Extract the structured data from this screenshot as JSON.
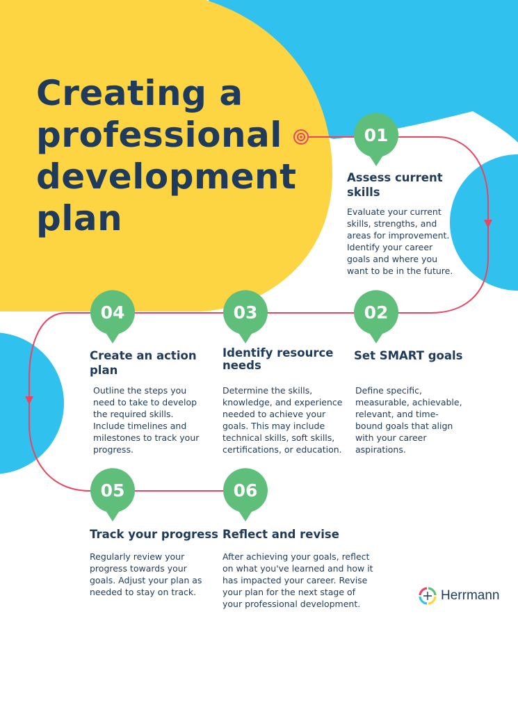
{
  "title_lines": [
    "Creating a",
    "professional",
    "development",
    "plan"
  ],
  "colors": {
    "yellow": "#FDD441",
    "blue": "#31C1EF",
    "green": "#5EBE7A",
    "line": "#E94562",
    "navy": "#1F3A5A"
  },
  "steps": [
    {
      "number": "01",
      "title_lines": [
        "Assess current",
        "skills"
      ],
      "desc_lines": [
        "Evaluate your current",
        "skills, strengths, and",
        "areas for improvement.",
        "Identify your career",
        "goals and where you",
        "want to be in the future."
      ]
    },
    {
      "number": "02",
      "title_lines": [
        "Set SMART goals"
      ],
      "desc_lines": [
        "Define specific,",
        "measurable, achievable,",
        "relevant, and time-",
        "bound goals that align",
        "with your career",
        "aspirations."
      ]
    },
    {
      "number": "03",
      "title_lines": [
        "Identify resource",
        "needs"
      ],
      "desc_lines": [
        "Determine the skills,",
        "knowledge, and experience",
        "needed to achieve your",
        "goals. This may include",
        "technical skills, soft skills,",
        "certifications, or education."
      ]
    },
    {
      "number": "04",
      "title_lines": [
        "Create an action",
        "plan"
      ],
      "desc_lines": [
        "Outline the steps you",
        "need to take to develop",
        "the required skills.",
        "Include timelines and",
        "milestones to track your",
        "progress."
      ]
    },
    {
      "number": "05",
      "title_lines": [
        "Track your progress"
      ],
      "desc_lines": [
        "Regularly review your",
        "progress towards your",
        "goals. Adjust your plan as",
        "needed to stay on track."
      ]
    },
    {
      "number": "06",
      "title_lines": [
        "Reflect and revise"
      ],
      "desc_lines": [
        "After achieving your goals, reflect",
        "on what you've learned and how it",
        "has impacted your career. Revise",
        "your plan for the next stage of",
        "your professional development."
      ]
    }
  ],
  "logo": {
    "text": "Herrmann",
    "icon": "herrmann-logo-icon"
  }
}
